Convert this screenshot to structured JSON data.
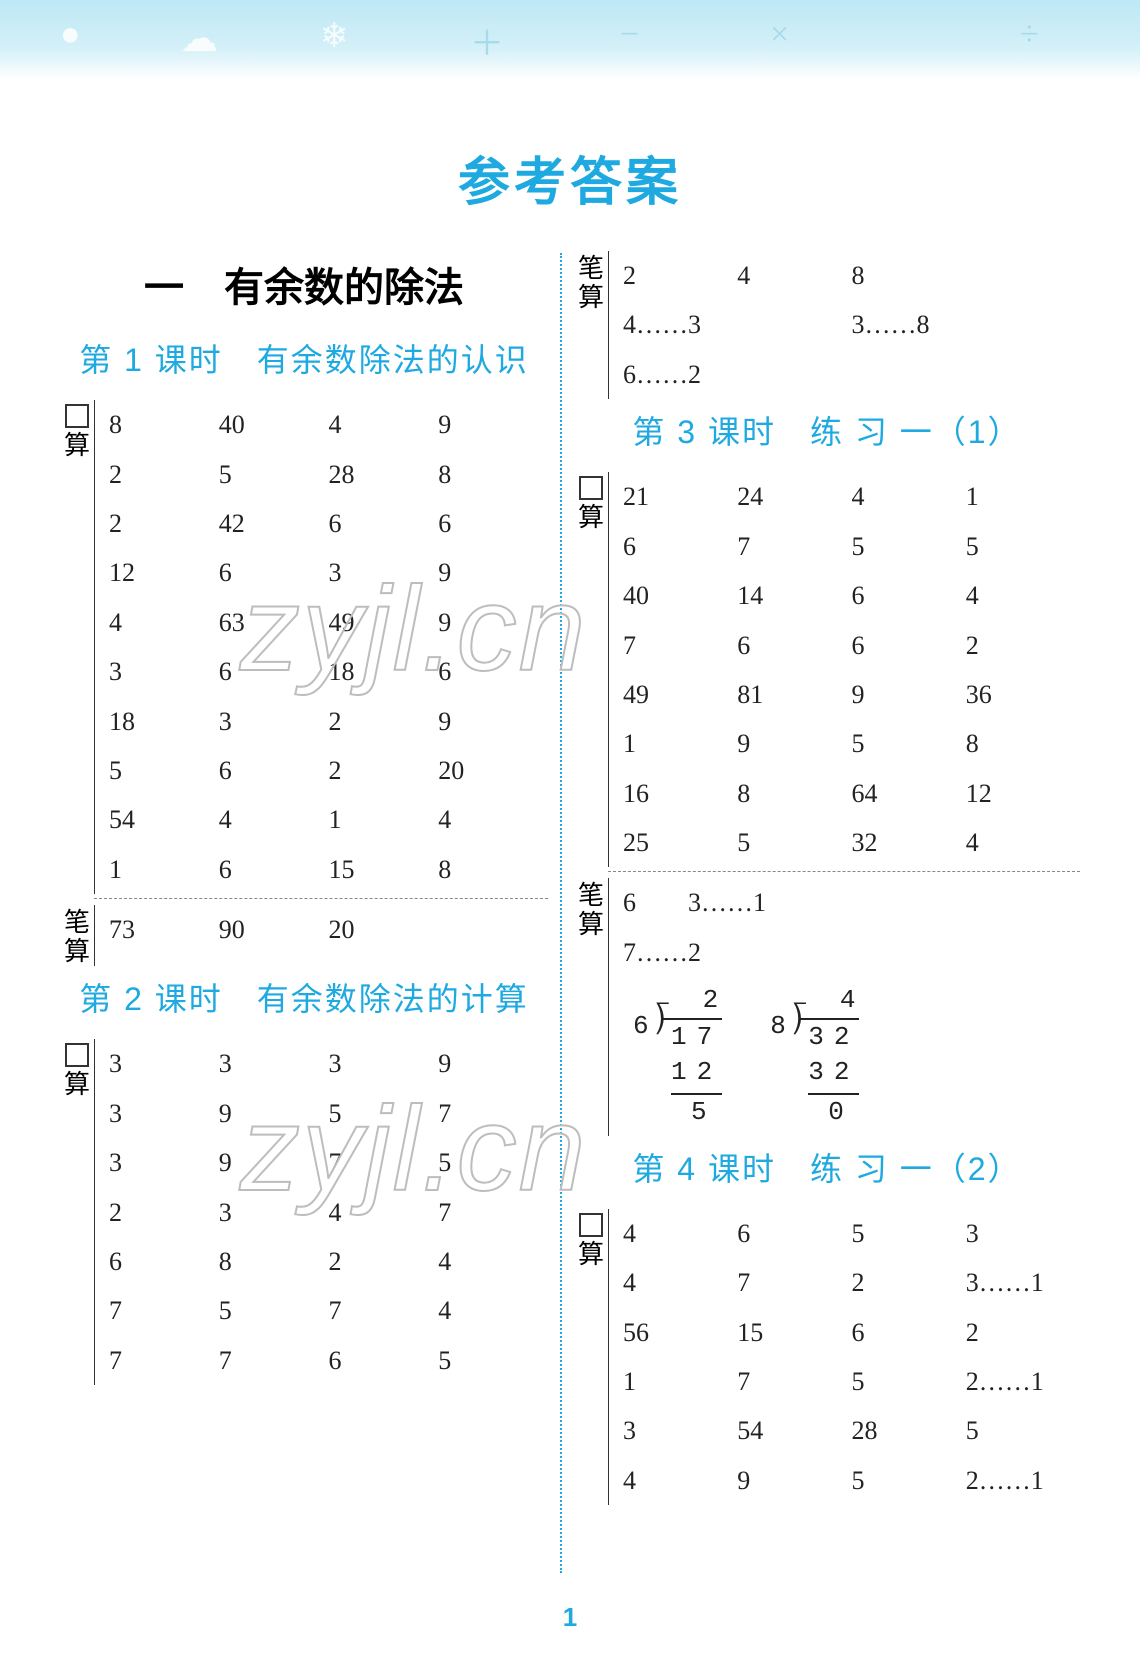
{
  "banner_icons": {
    "circle": "●",
    "cloud": "☁",
    "snow": "❄",
    "plus": "＋",
    "minus": "−",
    "times": "×",
    "div": "÷"
  },
  "page_title": "参考答案",
  "chapter": "一　有余数的除法",
  "left": {
    "lesson1_title": "第 1 课时　有余数除法的认识",
    "lesson1_kou_label": "口",
    "lesson1_suan": "算",
    "lesson1_kou_rows": [
      [
        "8",
        "40",
        "4",
        "9"
      ],
      [
        "2",
        "5",
        "28",
        "8"
      ],
      [
        "2",
        "42",
        "6",
        "6"
      ],
      [
        "12",
        "6",
        "3",
        "9"
      ],
      [
        "4",
        "63",
        "49",
        "9"
      ],
      [
        "3",
        "6",
        "18",
        "6"
      ],
      [
        "18",
        "3",
        "2",
        "9"
      ],
      [
        "5",
        "6",
        "2",
        "20"
      ],
      [
        "54",
        "4",
        "1",
        "4"
      ],
      [
        "1",
        "6",
        "15",
        "8"
      ]
    ],
    "lesson1_bi_label": "笔",
    "lesson1_bi_rows": [
      [
        "73",
        "90",
        "20",
        ""
      ]
    ],
    "lesson2_title": "第 2 课时　有余数除法的计算",
    "lesson2_kou_rows": [
      [
        "3",
        "3",
        "3",
        "9"
      ],
      [
        "3",
        "9",
        "5",
        "7"
      ],
      [
        "3",
        "9",
        "7",
        "5"
      ],
      [
        "2",
        "3",
        "4",
        "7"
      ],
      [
        "6",
        "8",
        "2",
        "4"
      ],
      [
        "7",
        "5",
        "7",
        "4"
      ],
      [
        "7",
        "7",
        "6",
        "5"
      ]
    ]
  },
  "right": {
    "top_bi_label": "笔",
    "top_bi_suan": "算",
    "top_bi_lines": [
      [
        "2",
        "4",
        "8",
        ""
      ],
      [
        "4……3",
        "",
        "3……8",
        ""
      ],
      [
        "6……2",
        "",
        "",
        ""
      ]
    ],
    "lesson3_title": "第 3 课时　练 习 一（1）",
    "lesson3_kou_rows": [
      [
        "21",
        "24",
        "4",
        "1"
      ],
      [
        "6",
        "7",
        "5",
        "5"
      ],
      [
        "40",
        "14",
        "6",
        "4"
      ],
      [
        "7",
        "6",
        "6",
        "2"
      ],
      [
        "49",
        "81",
        "9",
        "36"
      ],
      [
        "1",
        "9",
        "5",
        "8"
      ],
      [
        "16",
        "8",
        "64",
        "12"
      ],
      [
        "25",
        "5",
        "32",
        "4"
      ]
    ],
    "lesson3_bi_line1": "6　　3……1",
    "lesson3_bi_line2": "7……2",
    "longdiv": [
      {
        "divisor": "6",
        "dividend": "17",
        "quotient": "2",
        "sub": "12",
        "rem": "5"
      },
      {
        "divisor": "8",
        "dividend": "32",
        "quotient": "4",
        "sub": "32",
        "rem": "0"
      }
    ],
    "lesson4_title": "第 4 课时　练 习 一（2）",
    "lesson4_kou_rows": [
      [
        "4",
        "6",
        "5",
        "3"
      ],
      [
        "4",
        "7",
        "2",
        "3……1"
      ],
      [
        "56",
        "15",
        "6",
        "2"
      ],
      [
        "1",
        "7",
        "5",
        "2……1"
      ],
      [
        "3",
        "54",
        "28",
        "5"
      ],
      [
        "4",
        "9",
        "5",
        "2……1"
      ]
    ]
  },
  "watermark": "zyjl.cn",
  "page_number": "1",
  "colors": {
    "accent": "#1ea9e1",
    "banner": "#bde8f5",
    "text": "#222222"
  }
}
